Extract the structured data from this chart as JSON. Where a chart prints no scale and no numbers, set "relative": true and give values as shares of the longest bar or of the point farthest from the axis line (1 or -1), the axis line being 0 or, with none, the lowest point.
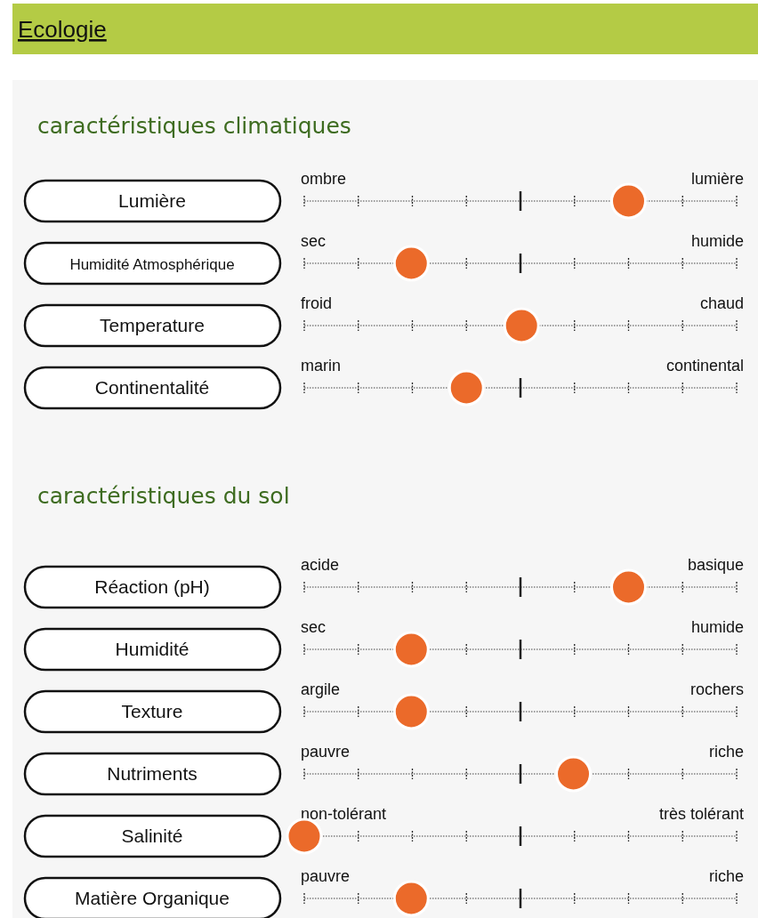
{
  "chart_data": [
    {
      "type": "scatter",
      "orientation": "horizontal",
      "relative": true,
      "title": "Ecologie",
      "subtitle": "caractéristiques climatiques",
      "categories": [
        "Lumière",
        "Humidité Atmosphérique",
        "Temperature",
        "Continentalité"
      ],
      "values": [
        1,
        0.33,
        0.67,
        0.5
      ],
      "grid": true,
      "color": "#eb6a2a",
      "marker": "circle",
      "annotations": [
        "ombre",
        "lumière",
        "sec",
        "humide",
        "froid",
        "chaud",
        "marin",
        "continental"
      ]
    },
    {
      "type": "scatter",
      "orientation": "horizontal",
      "relative": true,
      "subtitle": "caractéristiques du sol",
      "categories": [
        "Réaction (pH)",
        "Humidité",
        "Texture",
        "Nutriments",
        "Salinité",
        "Matière Organique"
      ],
      "values": [
        1,
        0.33,
        0.33,
        0.83,
        0,
        0.33
      ],
      "grid": true,
      "color": "#eb6a2a",
      "marker": "circle",
      "annotations": [
        "acide",
        "basique",
        "sec",
        "humide",
        "argile",
        "rochers",
        "pauvre",
        "riche",
        "non-tolérant",
        "très tolérant",
        "pauvre",
        "riche"
      ]
    }
  ]
}
